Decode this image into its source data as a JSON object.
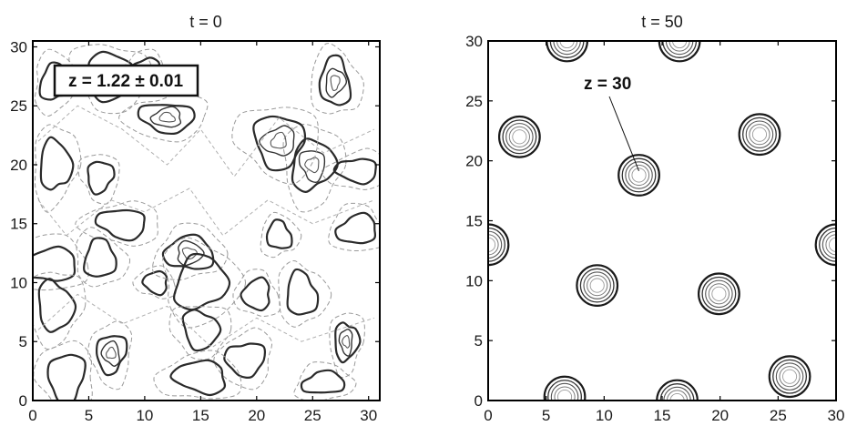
{
  "chart_data": [
    {
      "type": "contour",
      "title": "t = 0",
      "xlabel": "",
      "ylabel": "",
      "xlim": [
        0,
        31
      ],
      "ylim": [
        0,
        30.5
      ],
      "xticks": [
        0,
        5,
        10,
        15,
        20,
        25,
        30
      ],
      "yticks": [
        0,
        5,
        10,
        15,
        20,
        25,
        30
      ],
      "grid": false,
      "annotation": {
        "text": "z = 1.22 ± 0.01",
        "position": "top-left",
        "boxed": true
      },
      "description": "random field contours",
      "features": [
        {
          "x": 2,
          "y": 27,
          "kind": "closed"
        },
        {
          "x": 7,
          "y": 27.5,
          "kind": "closed"
        },
        {
          "x": 12,
          "y": 24,
          "kind": "peak"
        },
        {
          "x": 10,
          "y": 28,
          "kind": "closed"
        },
        {
          "x": 27,
          "y": 27,
          "kind": "peak"
        },
        {
          "x": 2,
          "y": 20,
          "kind": "closed"
        },
        {
          "x": 6,
          "y": 19,
          "kind": "closed"
        },
        {
          "x": 8,
          "y": 15,
          "kind": "closed"
        },
        {
          "x": 1.5,
          "y": 11.5,
          "kind": "closed"
        },
        {
          "x": 6,
          "y": 12,
          "kind": "closed"
        },
        {
          "x": 2,
          "y": 8,
          "kind": "closed"
        },
        {
          "x": 7,
          "y": 4,
          "kind": "peak"
        },
        {
          "x": 11,
          "y": 10,
          "kind": "closed"
        },
        {
          "x": 14,
          "y": 12.5,
          "kind": "peak"
        },
        {
          "x": 15,
          "y": 10,
          "kind": "closed"
        },
        {
          "x": 15,
          "y": 6,
          "kind": "closed"
        },
        {
          "x": 19,
          "y": 3.5,
          "kind": "closed"
        },
        {
          "x": 20,
          "y": 9,
          "kind": "closed"
        },
        {
          "x": 22,
          "y": 14,
          "kind": "closed"
        },
        {
          "x": 25,
          "y": 20,
          "kind": "peak"
        },
        {
          "x": 22,
          "y": 22,
          "kind": "peak"
        },
        {
          "x": 29,
          "y": 19.5,
          "kind": "closed"
        },
        {
          "x": 29,
          "y": 14.5,
          "kind": "closed"
        },
        {
          "x": 24,
          "y": 9,
          "kind": "closed"
        },
        {
          "x": 28,
          "y": 5,
          "kind": "peak"
        },
        {
          "x": 3,
          "y": 2,
          "kind": "closed"
        },
        {
          "x": 15,
          "y": 2,
          "kind": "closed"
        },
        {
          "x": 26,
          "y": 1.5,
          "kind": "closed"
        }
      ]
    },
    {
      "type": "contour",
      "title": "t = 50",
      "xlabel": "",
      "ylabel": "",
      "xlim": [
        0,
        30
      ],
      "ylim": [
        0,
        30
      ],
      "xticks": [
        0,
        5,
        10,
        15,
        20,
        25,
        30
      ],
      "yticks": [
        0,
        5,
        10,
        15,
        20,
        25,
        30
      ],
      "grid": false,
      "annotation": {
        "text": "z = 30",
        "points_to": {
          "x": 13,
          "y": 19
        }
      },
      "peaks": [
        {
          "x": 6.8,
          "y": 30
        },
        {
          "x": 16.5,
          "y": 30
        },
        {
          "x": 2.7,
          "y": 22
        },
        {
          "x": 13,
          "y": 18.8
        },
        {
          "x": 23.4,
          "y": 22.2
        },
        {
          "x": 0,
          "y": 13
        },
        {
          "x": 30,
          "y": 13
        },
        {
          "x": 9.4,
          "y": 9.6
        },
        {
          "x": 19.9,
          "y": 8.9
        },
        {
          "x": 6.6,
          "y": 0.3
        },
        {
          "x": 16.3,
          "y": 0
        },
        {
          "x": 26,
          "y": 2
        }
      ]
    }
  ]
}
